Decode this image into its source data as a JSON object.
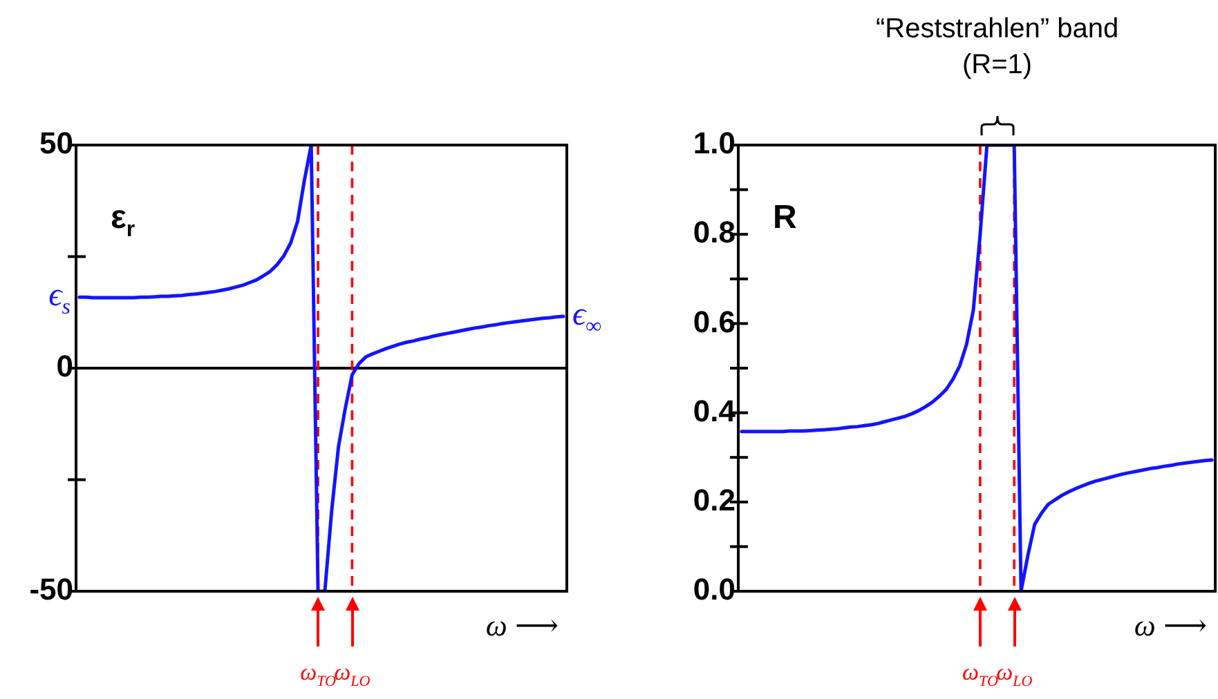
{
  "chart_data": [
    {
      "type": "line",
      "xlabel": "ω ⟶",
      "annotations": [
        "ε$_{r}$",
        "ϵ$_{s}$",
        "ϵ$_{∞}$"
      ],
      "categories": [
        null,
        null,
        null,
        null,
        null,
        null,
        null,
        null,
        null,
        null,
        null,
        null,
        null,
        null,
        null,
        null,
        null,
        null,
        null,
        null,
        null,
        null,
        null,
        null,
        null,
        null,
        null,
        null,
        null,
        null,
        null,
        null,
        null,
        null,
        null,
        "ω$_{TO}$",
        null,
        null,
        null,
        null,
        "ω$_{LO}$",
        null,
        null,
        null,
        null,
        null,
        null,
        null,
        null,
        null,
        null,
        null,
        null,
        null,
        null,
        null,
        null,
        null,
        null,
        null,
        null,
        null,
        null,
        null,
        null,
        null,
        null,
        null,
        null,
        null,
        null,
        null
      ],
      "values": [
        15.9,
        15.9,
        15.8,
        15.8,
        15.8,
        15.8,
        15.8,
        15.8,
        15.8,
        15.9,
        15.9,
        16.0,
        16.1,
        16.1,
        16.2,
        16.3,
        16.5,
        16.6,
        16.8,
        17.0,
        17.2,
        17.5,
        17.8,
        18.2,
        18.6,
        19.2,
        19.8,
        20.7,
        21.7,
        23.2,
        25.2,
        28.1,
        32.9,
        42.1,
        50,
        -50,
        -50,
        -32,
        -17.6,
        -9,
        -1.5,
        1.0,
        2.5,
        3.2,
        3.8,
        4.4,
        4.9,
        5.4,
        5.8,
        6.1,
        6.5,
        6.8,
        7.2,
        7.5,
        7.8,
        8.1,
        8.4,
        8.7,
        9.0,
        9.2,
        9.5,
        9.7,
        10.0,
        10.2,
        10.4,
        10.6,
        10.8,
        11.0,
        11.2,
        11.3,
        11.5,
        11.6
      ],
      "color": "#1414ff",
      "ylim": [
        -50,
        50
      ],
      "yticks": [
        -50,
        {
          "value": -25,
          "label": null
        },
        0,
        {
          "value": 25,
          "label": null
        },
        50
      ],
      "marker": "none",
      "line_style": "solid",
      "ref_lines": [
        {
          "axis": "y",
          "value": 0,
          "color": "#000000",
          "line_style": "solid"
        },
        {
          "axis": "x",
          "value": "ω$_{TO}$",
          "color": "#ff0000",
          "line_style": "dashed"
        },
        {
          "axis": "x",
          "value": "ω$_{LO}$",
          "color": "#ff0000",
          "line_style": "dashed"
        }
      ]
    },
    {
      "type": "line",
      "xlabel": "ω ⟶",
      "annotations": [
        "R",
        "“Reststrahlen” band\n(R=1)"
      ],
      "categories": [
        null,
        null,
        null,
        null,
        null,
        null,
        null,
        null,
        null,
        null,
        null,
        null,
        null,
        null,
        null,
        null,
        null,
        null,
        null,
        null,
        null,
        null,
        null,
        null,
        null,
        null,
        null,
        null,
        null,
        null,
        null,
        null,
        null,
        null,
        null,
        "ω$_{TO}$",
        null,
        null,
        null,
        null,
        "ω$_{LO}$",
        null,
        null,
        null,
        null,
        null,
        null,
        null,
        null,
        null,
        null,
        null,
        null,
        null,
        null,
        null,
        null,
        null,
        null,
        null,
        null,
        null,
        null,
        null,
        null,
        null,
        null,
        null,
        null,
        null
      ],
      "values": [
        0.358,
        0.358,
        0.358,
        0.358,
        0.358,
        0.358,
        0.358,
        0.359,
        0.359,
        0.359,
        0.36,
        0.361,
        0.362,
        0.363,
        0.364,
        0.366,
        0.368,
        0.369,
        0.371,
        0.373,
        0.376,
        0.38,
        0.384,
        0.388,
        0.392,
        0.398,
        0.405,
        0.414,
        0.424,
        0.437,
        0.452,
        0.475,
        0.505,
        0.553,
        0.63,
        0.8,
        1,
        1,
        1,
        1,
        1,
        0,
        0.08,
        0.15,
        0.175,
        0.195,
        0.205,
        0.215,
        0.223,
        0.23,
        0.236,
        0.242,
        0.247,
        0.251,
        0.255,
        0.259,
        0.263,
        0.266,
        0.269,
        0.272,
        0.275,
        0.277,
        0.28,
        0.282,
        0.285,
        0.287,
        0.289,
        0.291,
        0.293,
        0.294
      ],
      "color": "#1414ff",
      "ylim": [
        0,
        1
      ],
      "yticks": [
        {
          "value": 0,
          "label": "0.0"
        },
        {
          "value": 0.1,
          "label": null
        },
        {
          "value": 0.2,
          "label": "0.2"
        },
        {
          "value": 0.3,
          "label": null
        },
        {
          "value": 0.4,
          "label": "0.4"
        },
        {
          "value": 0.5,
          "label": null
        },
        {
          "value": 0.6,
          "label": "0.6"
        },
        {
          "value": 0.7,
          "label": null
        },
        {
          "value": 0.8,
          "label": "0.8"
        },
        {
          "value": 0.9,
          "label": null
        },
        {
          "value": 1,
          "label": "1.0"
        }
      ],
      "marker": "none",
      "line_style": "solid",
      "ref_lines": [
        {
          "axis": "x",
          "value": "ω$_{TO}$",
          "color": "#ff0000",
          "line_style": "dashed"
        },
        {
          "axis": "x",
          "value": "ω$_{LO}$",
          "color": "#ff0000",
          "line_style": "dashed"
        }
      ]
    }
  ]
}
